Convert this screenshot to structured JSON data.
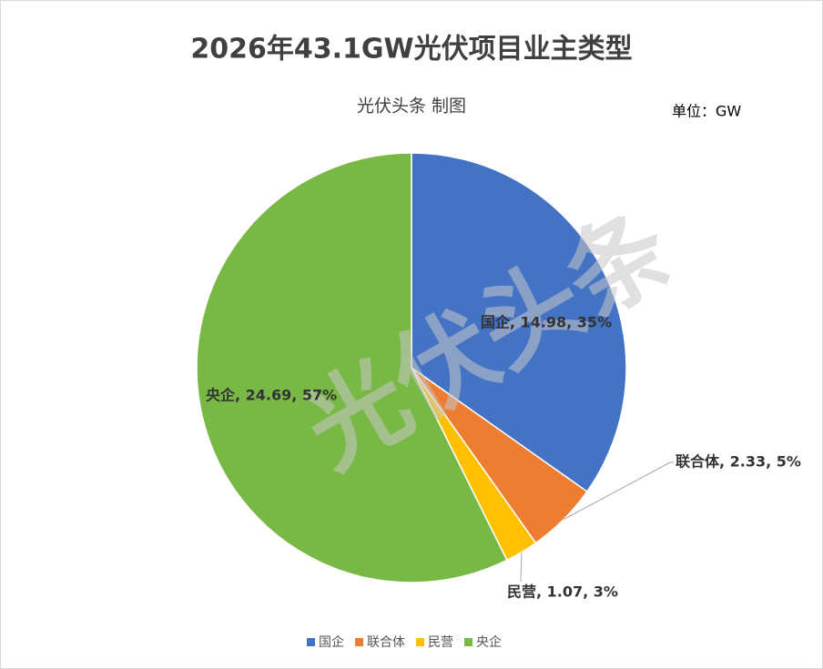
{
  "chart_data": {
    "type": "pie",
    "title": "2026年43.1GW光伏项目业主类型",
    "subtitle": "光伏头条 制图",
    "unit_label": "单位：GW",
    "watermark": "光伏头条",
    "categories": [
      "国企",
      "联合体",
      "民营",
      "央企"
    ],
    "values": [
      14.98,
      2.33,
      1.07,
      24.69
    ],
    "value_labels": [
      "国企, 14.98, 35%",
      "联合体, 2.33, 5%",
      "民营, 1.07, 3%",
      "央企, 24.69, 57%"
    ],
    "colors": [
      "#4472c4",
      "#ed7d31",
      "#ffc000",
      "#78b946"
    ],
    "legend": "bottom"
  }
}
